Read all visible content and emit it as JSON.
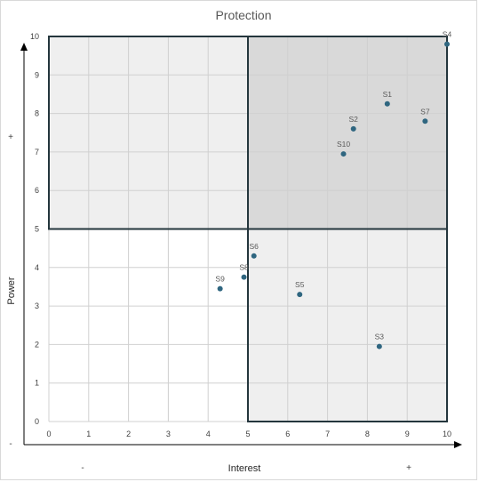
{
  "chart_data": {
    "type": "scatter",
    "title": "Protection",
    "xlabel": "Interest",
    "ylabel": "Power",
    "xlim": [
      0,
      10
    ],
    "ylim": [
      0,
      10
    ],
    "xticks": [
      0,
      1,
      2,
      3,
      4,
      5,
      6,
      7,
      8,
      9,
      10
    ],
    "yticks": [
      0,
      1,
      2,
      3,
      4,
      5,
      6,
      7,
      8,
      9,
      10
    ],
    "grid": true,
    "x_axis_signs": {
      "low": "-",
      "high": "+"
    },
    "y_axis_signs": {
      "low": "-",
      "high": "+"
    },
    "quadrants": [
      {
        "x": [
          0,
          5
        ],
        "y": [
          5,
          10
        ],
        "fill": "#efefef"
      },
      {
        "x": [
          5,
          10
        ],
        "y": [
          5,
          10
        ],
        "fill": "#d9d9d9"
      },
      {
        "x": [
          5,
          10
        ],
        "y": [
          0,
          5
        ],
        "fill": "#efefef"
      }
    ],
    "points": [
      {
        "label": "S1",
        "x": 8.5,
        "y": 8.25
      },
      {
        "label": "S2",
        "x": 7.65,
        "y": 7.6
      },
      {
        "label": "S3",
        "x": 8.3,
        "y": 1.95
      },
      {
        "label": "S4",
        "x": 10.0,
        "y": 9.8
      },
      {
        "label": "S5",
        "x": 6.3,
        "y": 3.3
      },
      {
        "label": "S6",
        "x": 5.15,
        "y": 4.3
      },
      {
        "label": "S7",
        "x": 9.45,
        "y": 7.8
      },
      {
        "label": "S8",
        "x": 4.9,
        "y": 3.75
      },
      {
        "label": "S9",
        "x": 4.3,
        "y": 3.45
      },
      {
        "label": "S10",
        "x": 7.4,
        "y": 6.95
      }
    ],
    "colors": {
      "point": "#2f6680",
      "box_border": "#24363d",
      "grid": "#d0d0d0",
      "axis": "#000000"
    }
  }
}
